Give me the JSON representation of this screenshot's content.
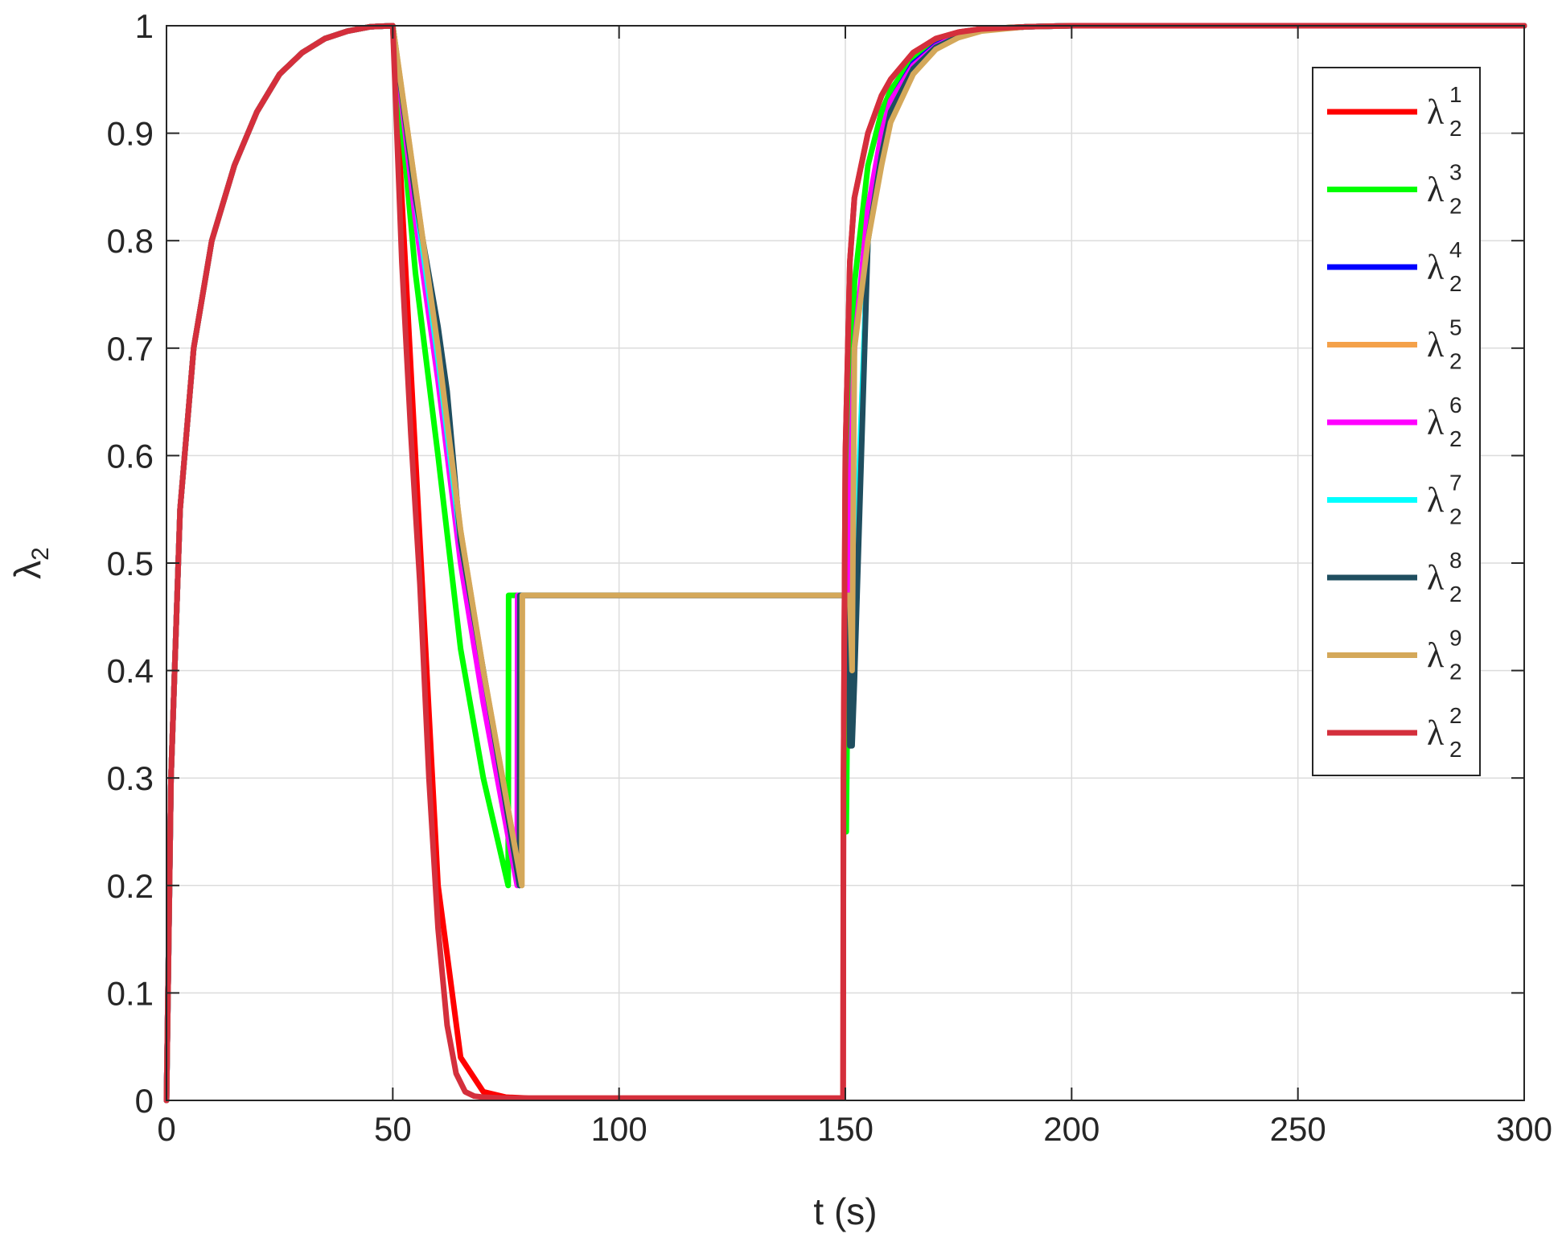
{
  "chart_data": {
    "type": "line",
    "title": "",
    "xlabel": "t (s)",
    "ylabel": "λ",
    "ylabel_sub": "2",
    "xlim": [
      0,
      300
    ],
    "ylim": [
      0,
      1
    ],
    "xticks": [
      0,
      50,
      100,
      150,
      200,
      250,
      300
    ],
    "yticks": [
      0,
      0.1,
      0.2,
      0.3,
      0.4,
      0.5,
      0.6,
      0.7,
      0.8,
      0.9,
      1
    ],
    "xtick_labels": [
      "0",
      "50",
      "100",
      "150",
      "200",
      "250",
      "300"
    ],
    "ytick_labels": [
      "0",
      "0.1",
      "0.2",
      "0.3",
      "0.4",
      "0.5",
      "0.6",
      "0.7",
      "0.8",
      "0.9",
      "1"
    ],
    "grid": true,
    "legend_position": "top-right",
    "series": [
      {
        "legend_base": "λ",
        "sub": "2",
        "sup": "1",
        "color": "#ff0000",
        "x": [
          0,
          1,
          3,
          6,
          10,
          15,
          20,
          25,
          30,
          35,
          40,
          45,
          50,
          55,
          60,
          65,
          70,
          75,
          80,
          100,
          120,
          149.5,
          149.6,
          150,
          151,
          152,
          155,
          158,
          160,
          165,
          170,
          175,
          180,
          190,
          200,
          250,
          300
        ],
        "y": [
          0,
          0.3,
          0.55,
          0.7,
          0.8,
          0.87,
          0.92,
          0.955,
          0.975,
          0.988,
          0.995,
          0.999,
          1,
          0.6,
          0.2,
          0.04,
          0.008,
          0.003,
          0.002,
          0.002,
          0.002,
          0.002,
          0.3,
          0.6,
          0.78,
          0.84,
          0.9,
          0.935,
          0.95,
          0.975,
          0.988,
          0.994,
          0.997,
          0.999,
          1,
          1,
          1
        ]
      },
      {
        "legend_base": "λ",
        "sub": "2",
        "sup": "3",
        "color": "#00ff00",
        "x": [
          0,
          1,
          3,
          6,
          10,
          15,
          20,
          25,
          30,
          35,
          40,
          45,
          50,
          55,
          60,
          65,
          70,
          75.5,
          75.6,
          80,
          100,
          120,
          150,
          150.2,
          151,
          152,
          155,
          158,
          160,
          165,
          170,
          175,
          180,
          190,
          200,
          250,
          300
        ],
        "y": [
          0,
          0.3,
          0.55,
          0.7,
          0.8,
          0.87,
          0.92,
          0.955,
          0.975,
          0.988,
          0.995,
          0.999,
          1,
          0.77,
          0.6,
          0.42,
          0.3,
          0.2,
          0.47,
          0.47,
          0.47,
          0.47,
          0.47,
          0.25,
          0.62,
          0.76,
          0.87,
          0.92,
          0.94,
          0.97,
          0.985,
          0.993,
          0.997,
          0.999,
          1,
          1,
          1
        ]
      },
      {
        "legend_base": "λ",
        "sub": "2",
        "sup": "4",
        "color": "#0000ff",
        "x": [
          0,
          1,
          3,
          6,
          10,
          15,
          20,
          25,
          30,
          35,
          40,
          45,
          50,
          55,
          60,
          65,
          70,
          78,
          78.1,
          100,
          120,
          150,
          151,
          151.1,
          152,
          155,
          158,
          160,
          165,
          170,
          175,
          180,
          190,
          200,
          250,
          300
        ],
        "y": [
          0,
          0.3,
          0.55,
          0.7,
          0.8,
          0.87,
          0.92,
          0.955,
          0.975,
          0.988,
          0.995,
          0.999,
          1,
          0.84,
          0.69,
          0.52,
          0.4,
          0.2,
          0.47,
          0.47,
          0.47,
          0.47,
          0.47,
          0.33,
          0.4,
          0.82,
          0.9,
          0.93,
          0.965,
          0.982,
          0.991,
          0.996,
          0.999,
          1,
          1,
          1
        ]
      },
      {
        "legend_base": "λ",
        "sub": "2",
        "sup": "5",
        "color": "#f4a14a",
        "x": [
          0,
          1,
          3,
          6,
          10,
          15,
          20,
          25,
          30,
          35,
          40,
          45,
          50,
          55,
          60,
          65,
          70,
          78.5,
          78.6,
          100,
          120,
          150,
          151,
          152,
          155,
          158,
          160,
          165,
          170,
          175,
          180,
          190,
          200,
          250,
          300
        ],
        "y": [
          0,
          0.3,
          0.55,
          0.7,
          0.8,
          0.87,
          0.92,
          0.955,
          0.975,
          0.988,
          0.995,
          0.999,
          1,
          0.85,
          0.7,
          0.53,
          0.4,
          0.2,
          0.47,
          0.47,
          0.47,
          0.47,
          0.47,
          0.47,
          0.8,
          0.88,
          0.92,
          0.96,
          0.98,
          0.99,
          0.996,
          0.999,
          1,
          1,
          1
        ]
      },
      {
        "legend_base": "λ",
        "sub": "2",
        "sup": "6",
        "color": "#ff00ff",
        "x": [
          0,
          1,
          3,
          6,
          10,
          15,
          20,
          25,
          30,
          35,
          40,
          45,
          50,
          55,
          60,
          65,
          70,
          77.5,
          77.6,
          100,
          120,
          150,
          150.5,
          151,
          152,
          155,
          158,
          160,
          165,
          170,
          175,
          180,
          190,
          200,
          250,
          300
        ],
        "y": [
          0,
          0.3,
          0.55,
          0.7,
          0.8,
          0.87,
          0.92,
          0.955,
          0.975,
          0.988,
          0.995,
          0.999,
          1,
          0.82,
          0.67,
          0.5,
          0.37,
          0.2,
          0.47,
          0.47,
          0.47,
          0.47,
          0.47,
          0.55,
          0.7,
          0.83,
          0.9,
          0.93,
          0.963,
          0.981,
          0.991,
          0.996,
          0.999,
          1,
          1,
          1
        ]
      },
      {
        "legend_base": "λ",
        "sub": "2",
        "sup": "7",
        "color": "#00ffff",
        "x": [
          0,
          1,
          3,
          6,
          10,
          15,
          20,
          25,
          30,
          35,
          40,
          45,
          50,
          55,
          60,
          65,
          70,
          78,
          78.1,
          100,
          120,
          150,
          151,
          152,
          155,
          158,
          160,
          165,
          170,
          175,
          180,
          190,
          200,
          250,
          300
        ],
        "y": [
          0,
          0.3,
          0.55,
          0.7,
          0.8,
          0.87,
          0.92,
          0.955,
          0.975,
          0.988,
          0.995,
          0.999,
          1,
          0.84,
          0.69,
          0.52,
          0.4,
          0.2,
          0.47,
          0.47,
          0.47,
          0.47,
          0.47,
          0.47,
          0.8,
          0.88,
          0.92,
          0.96,
          0.98,
          0.99,
          0.996,
          0.999,
          1,
          1,
          1
        ]
      },
      {
        "legend_base": "λ",
        "sub": "2",
        "sup": "8",
        "color": "#1f4e5f",
        "x": [
          0,
          1,
          3,
          6,
          10,
          15,
          20,
          25,
          30,
          35,
          40,
          45,
          50,
          55,
          60,
          61,
          62,
          65,
          70,
          78,
          78.1,
          100,
          120,
          150,
          150.8,
          151,
          151.5,
          152,
          155,
          158,
          160,
          165,
          170,
          175,
          180,
          190,
          200,
          250,
          300
        ],
        "y": [
          0,
          0.3,
          0.55,
          0.7,
          0.8,
          0.87,
          0.92,
          0.955,
          0.975,
          0.988,
          0.995,
          0.999,
          1,
          0.84,
          0.72,
          0.69,
          0.66,
          0.52,
          0.4,
          0.2,
          0.47,
          0.47,
          0.47,
          0.47,
          0.47,
          0.33,
          0.33,
          0.39,
          0.8,
          0.88,
          0.92,
          0.96,
          0.98,
          0.99,
          0.996,
          0.999,
          1,
          1,
          1
        ]
      },
      {
        "legend_base": "λ",
        "sub": "2",
        "sup": "9",
        "color": "#d4a85a",
        "x": [
          0,
          1,
          3,
          6,
          10,
          15,
          20,
          25,
          30,
          35,
          40,
          45,
          50,
          55,
          60,
          65,
          70,
          78.5,
          78.6,
          100,
          120,
          150,
          151,
          151.5,
          152,
          155,
          158,
          160,
          165,
          170,
          175,
          180,
          190,
          200,
          250,
          300
        ],
        "y": [
          0,
          0.3,
          0.55,
          0.7,
          0.8,
          0.87,
          0.92,
          0.955,
          0.975,
          0.988,
          0.995,
          0.999,
          1,
          0.85,
          0.7,
          0.53,
          0.4,
          0.2,
          0.47,
          0.47,
          0.47,
          0.47,
          0.47,
          0.4,
          0.7,
          0.8,
          0.87,
          0.91,
          0.955,
          0.978,
          0.989,
          0.995,
          0.999,
          1,
          1,
          1
        ]
      },
      {
        "legend_base": "λ",
        "sub": "2",
        "sup": "2",
        "color": "#d42f3c",
        "x": [
          0,
          1,
          3,
          6,
          10,
          15,
          20,
          25,
          30,
          35,
          40,
          45,
          50,
          52,
          54,
          56,
          58,
          60,
          62,
          64,
          66,
          68,
          70,
          75,
          80,
          100,
          120,
          149.5,
          149.6,
          150,
          151,
          152,
          155,
          158,
          160,
          165,
          170,
          175,
          180,
          190,
          200,
          250,
          300
        ],
        "y": [
          0,
          0.3,
          0.55,
          0.7,
          0.8,
          0.87,
          0.92,
          0.955,
          0.975,
          0.988,
          0.995,
          0.999,
          1,
          0.78,
          0.62,
          0.48,
          0.3,
          0.16,
          0.07,
          0.025,
          0.008,
          0.004,
          0.003,
          0.002,
          0.002,
          0.002,
          0.002,
          0.002,
          0.3,
          0.6,
          0.78,
          0.84,
          0.9,
          0.935,
          0.95,
          0.975,
          0.988,
          0.994,
          0.997,
          0.999,
          1,
          1,
          1
        ]
      }
    ]
  }
}
